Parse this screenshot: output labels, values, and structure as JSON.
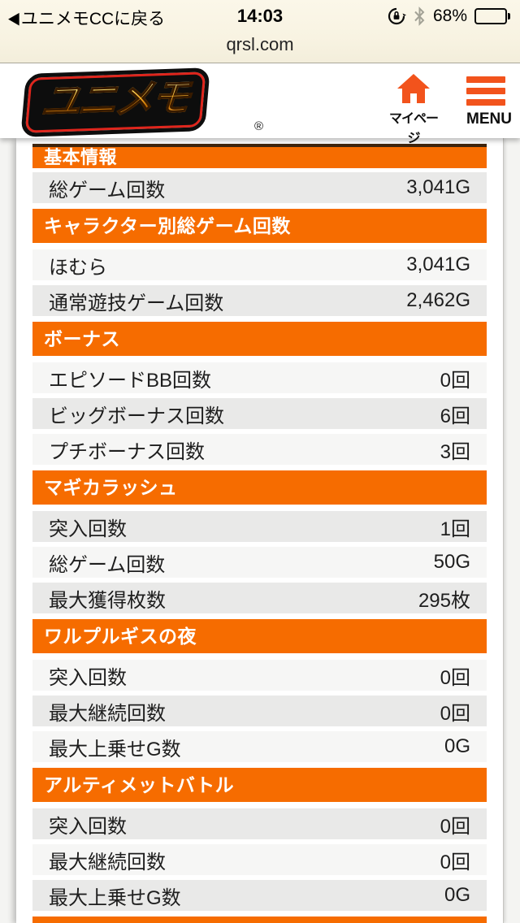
{
  "status_bar": {
    "back_label": "ユニメモCCに戻る",
    "back_arrow": "◀",
    "time": "14:03",
    "battery_percent": "68%",
    "battery_level": 68,
    "icons": [
      "orientation-lock",
      "bluetooth",
      "battery"
    ]
  },
  "url_bar": {
    "url": "qrsl.com"
  },
  "site_header": {
    "logo_text": "ユニメモ",
    "logo_reg": "®",
    "mypage_label": "マイページ",
    "menu_label": "MENU"
  },
  "colors": {
    "section_orange": "#f66c00",
    "header_icon_orange": "#f2531c",
    "row_dark": "#e9e9e8",
    "row_light": "#f6f6f5",
    "safari_cream": "#f8f3e2",
    "logo_red_ring": "#e0251c"
  },
  "sections": [
    {
      "title": "基本情報",
      "rows": [
        {
          "label": "総ゲーム回数",
          "value": "3,041G"
        }
      ]
    },
    {
      "title": "キャラクター別総ゲーム回数",
      "rows": [
        {
          "label": "ほむら",
          "value": "3,041G"
        },
        {
          "label": "通常遊技ゲーム回数",
          "value": "2,462G"
        }
      ]
    },
    {
      "title": "ボーナス",
      "rows": [
        {
          "label": "エピソードBB回数",
          "value": "0回"
        },
        {
          "label": "ビッグボーナス回数",
          "value": "6回"
        },
        {
          "label": "プチボーナス回数",
          "value": "3回"
        }
      ]
    },
    {
      "title": "マギカラッシュ",
      "rows": [
        {
          "label": "突入回数",
          "value": "1回"
        },
        {
          "label": "総ゲーム回数",
          "value": "50G"
        },
        {
          "label": "最大獲得枚数",
          "value": "295枚"
        }
      ]
    },
    {
      "title": "ワルプルギスの夜",
      "rows": [
        {
          "label": "突入回数",
          "value": "0回"
        },
        {
          "label": "最大継続回数",
          "value": "0回"
        },
        {
          "label": "最大上乗せG数",
          "value": "0G"
        }
      ]
    },
    {
      "title": "アルティメットバトル",
      "rows": [
        {
          "label": "突入回数",
          "value": "0回"
        },
        {
          "label": "最大継続回数",
          "value": "0回"
        },
        {
          "label": "最大上乗せG数",
          "value": "0G"
        }
      ]
    }
  ],
  "next_section_peek": {
    "title": ""
  }
}
